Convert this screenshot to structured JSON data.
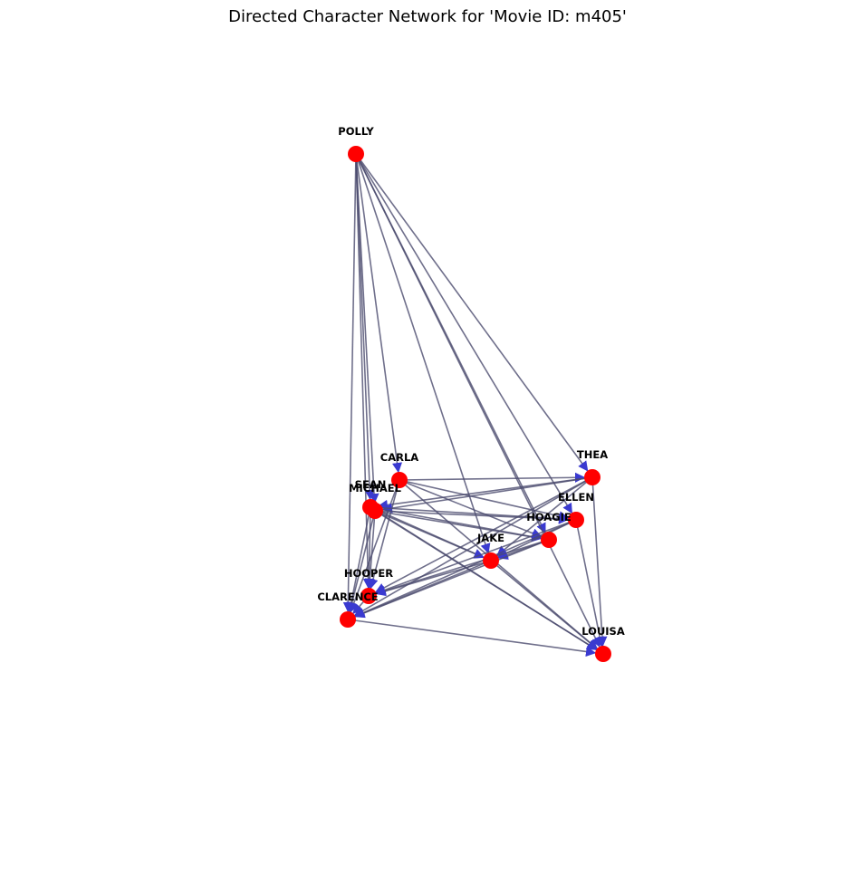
{
  "title": "Directed Character Network for 'Movie ID: m405'",
  "colors": {
    "node": "#ff0000",
    "edge": "#4b4b6e",
    "arrow": "#3a3ad0"
  },
  "nodes": [
    {
      "id": "POLLY",
      "label": "POLLY"
    },
    {
      "id": "CARLA",
      "label": "CARLA"
    },
    {
      "id": "THEA",
      "label": "THEA"
    },
    {
      "id": "SEAN",
      "label": "SEAN"
    },
    {
      "id": "MICHAEL",
      "label": "MICHAEL"
    },
    {
      "id": "ELLEN",
      "label": "ELLEN"
    },
    {
      "id": "HOAGIE",
      "label": "HOAGIE"
    },
    {
      "id": "JAKE",
      "label": "JAKE"
    },
    {
      "id": "HOOPER",
      "label": "HOOPER"
    },
    {
      "id": "CLARENCE",
      "label": "CLARENCE"
    },
    {
      "id": "LOUISA",
      "label": "LOUISA"
    }
  ],
  "edges": [
    [
      "POLLY",
      "CLARENCE"
    ],
    [
      "POLLY",
      "HOOPER"
    ],
    [
      "POLLY",
      "SEAN"
    ],
    [
      "POLLY",
      "MICHAEL"
    ],
    [
      "POLLY",
      "CARLA"
    ],
    [
      "POLLY",
      "JAKE"
    ],
    [
      "POLLY",
      "HOAGIE"
    ],
    [
      "POLLY",
      "ELLEN"
    ],
    [
      "POLLY",
      "THEA"
    ],
    [
      "POLLY",
      "LOUISA"
    ],
    [
      "CARLA",
      "THEA"
    ],
    [
      "CARLA",
      "ELLEN"
    ],
    [
      "CARLA",
      "HOAGIE"
    ],
    [
      "CARLA",
      "HOOPER"
    ],
    [
      "CARLA",
      "CLARENCE"
    ],
    [
      "CARLA",
      "LOUISA"
    ],
    [
      "THEA",
      "SEAN"
    ],
    [
      "THEA",
      "MICHAEL"
    ],
    [
      "THEA",
      "JAKE"
    ],
    [
      "THEA",
      "HOOPER"
    ],
    [
      "THEA",
      "CLARENCE"
    ],
    [
      "THEA",
      "LOUISA"
    ],
    [
      "SEAN",
      "ELLEN"
    ],
    [
      "SEAN",
      "HOAGIE"
    ],
    [
      "SEAN",
      "JAKE"
    ],
    [
      "SEAN",
      "LOUISA"
    ],
    [
      "SEAN",
      "HOOPER"
    ],
    [
      "SEAN",
      "CLARENCE"
    ],
    [
      "MICHAEL",
      "ELLEN"
    ],
    [
      "MICHAEL",
      "HOAGIE"
    ],
    [
      "MICHAEL",
      "JAKE"
    ],
    [
      "MICHAEL",
      "LOUISA"
    ],
    [
      "MICHAEL",
      "HOOPER"
    ],
    [
      "MICHAEL",
      "CLARENCE"
    ],
    [
      "ELLEN",
      "JAKE"
    ],
    [
      "ELLEN",
      "HOOPER"
    ],
    [
      "ELLEN",
      "CLARENCE"
    ],
    [
      "ELLEN",
      "LOUISA"
    ],
    [
      "HOAGIE",
      "JAKE"
    ],
    [
      "HOAGIE",
      "HOOPER"
    ],
    [
      "HOAGIE",
      "CLARENCE"
    ],
    [
      "JAKE",
      "HOOPER"
    ],
    [
      "JAKE",
      "CLARENCE"
    ],
    [
      "JAKE",
      "LOUISA"
    ],
    [
      "HOOPER",
      "CLARENCE"
    ],
    [
      "CLARENCE",
      "LOUISA"
    ]
  ]
}
